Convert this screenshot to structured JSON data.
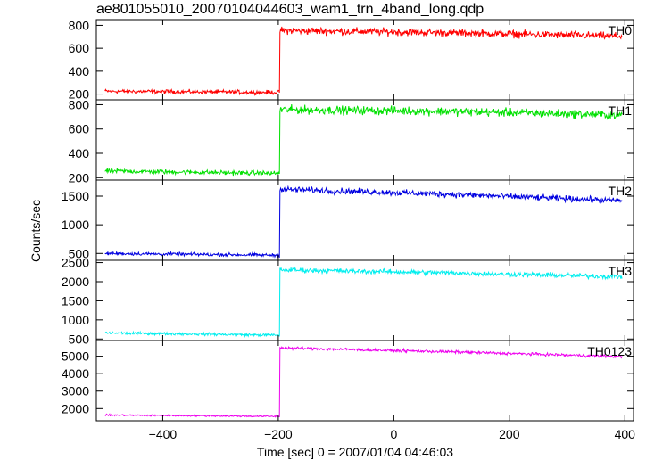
{
  "title": "ae801055010_20070104044603_wam1_trn_4band_long.qdp",
  "xlabel": "Time [sec] 0 = 2007/01/04 04:46:03",
  "ylabel": "Counts/sec",
  "chart_data": {
    "type": "line",
    "title": "ae801055010_20070104044603_wam1_trn_4band_long.qdp",
    "xlabel": "Time [sec] 0 = 2007/01/04 04:46:03",
    "ylabel": "Counts/sec",
    "xlim": [
      -515,
      415
    ],
    "x_ticks": [
      -400,
      -200,
      0,
      200,
      400
    ],
    "x_tick_labels": [
      "−400",
      "−200",
      "0",
      "200",
      "400"
    ],
    "grid": false,
    "layout": "stacked panels sharing x axis",
    "step_time": -198,
    "x_start": -500,
    "x_end": 395,
    "panels": [
      {
        "name": "TH0",
        "color": "#ff0000",
        "ylim": [
          150,
          850
        ],
        "yticks": [
          200,
          400,
          600,
          800
        ],
        "ytick_labels": [
          "200",
          "400",
          "600",
          "800"
        ],
        "segments": [
          [
            -500,
            225
          ],
          [
            -198,
            215
          ],
          [
            -197,
            755
          ],
          [
            100,
            735
          ],
          [
            395,
            705
          ]
        ],
        "noise": 28
      },
      {
        "name": "TH1",
        "color": "#00e000",
        "ylim": [
          180,
          840
        ],
        "yticks": [
          200,
          400,
          600,
          800
        ],
        "ytick_labels": [
          "200",
          "400",
          "600",
          "800"
        ],
        "segments": [
          [
            -500,
            255
          ],
          [
            -198,
            235
          ],
          [
            -197,
            760
          ],
          [
            100,
            745
          ],
          [
            395,
            715
          ]
        ],
        "noise": 30
      },
      {
        "name": "TH2",
        "color": "#0000e0",
        "ylim": [
          380,
          1780
        ],
        "yticks": [
          500,
          1000,
          1500
        ],
        "ytick_labels": [
          "500",
          "1000",
          "1500"
        ],
        "segments": [
          [
            -500,
            500
          ],
          [
            -198,
            470
          ],
          [
            -197,
            1620
          ],
          [
            100,
            1530
          ],
          [
            395,
            1420
          ]
        ],
        "noise": 45
      },
      {
        "name": "TH3",
        "color": "#00eeee",
        "ylim": [
          460,
          2560
        ],
        "yticks": [
          500,
          1000,
          1500,
          2000,
          2500
        ],
        "ytick_labels": [
          "500",
          "1000",
          "1500",
          "2000",
          "2500"
        ],
        "segments": [
          [
            -500,
            660
          ],
          [
            -198,
            600
          ],
          [
            -197,
            2310
          ],
          [
            100,
            2230
          ],
          [
            395,
            2130
          ]
        ],
        "noise": 55
      },
      {
        "name": "TH0123",
        "color": "#ee00ee",
        "ylim": [
          1300,
          5900
        ],
        "yticks": [
          2000,
          3000,
          4000,
          5000
        ],
        "ytick_labels": [
          "2000",
          "3000",
          "4000",
          "5000"
        ],
        "segments": [
          [
            -500,
            1630
          ],
          [
            -198,
            1550
          ],
          [
            -197,
            5480
          ],
          [
            100,
            5250
          ],
          [
            395,
            4980
          ]
        ],
        "noise": 70
      }
    ]
  }
}
